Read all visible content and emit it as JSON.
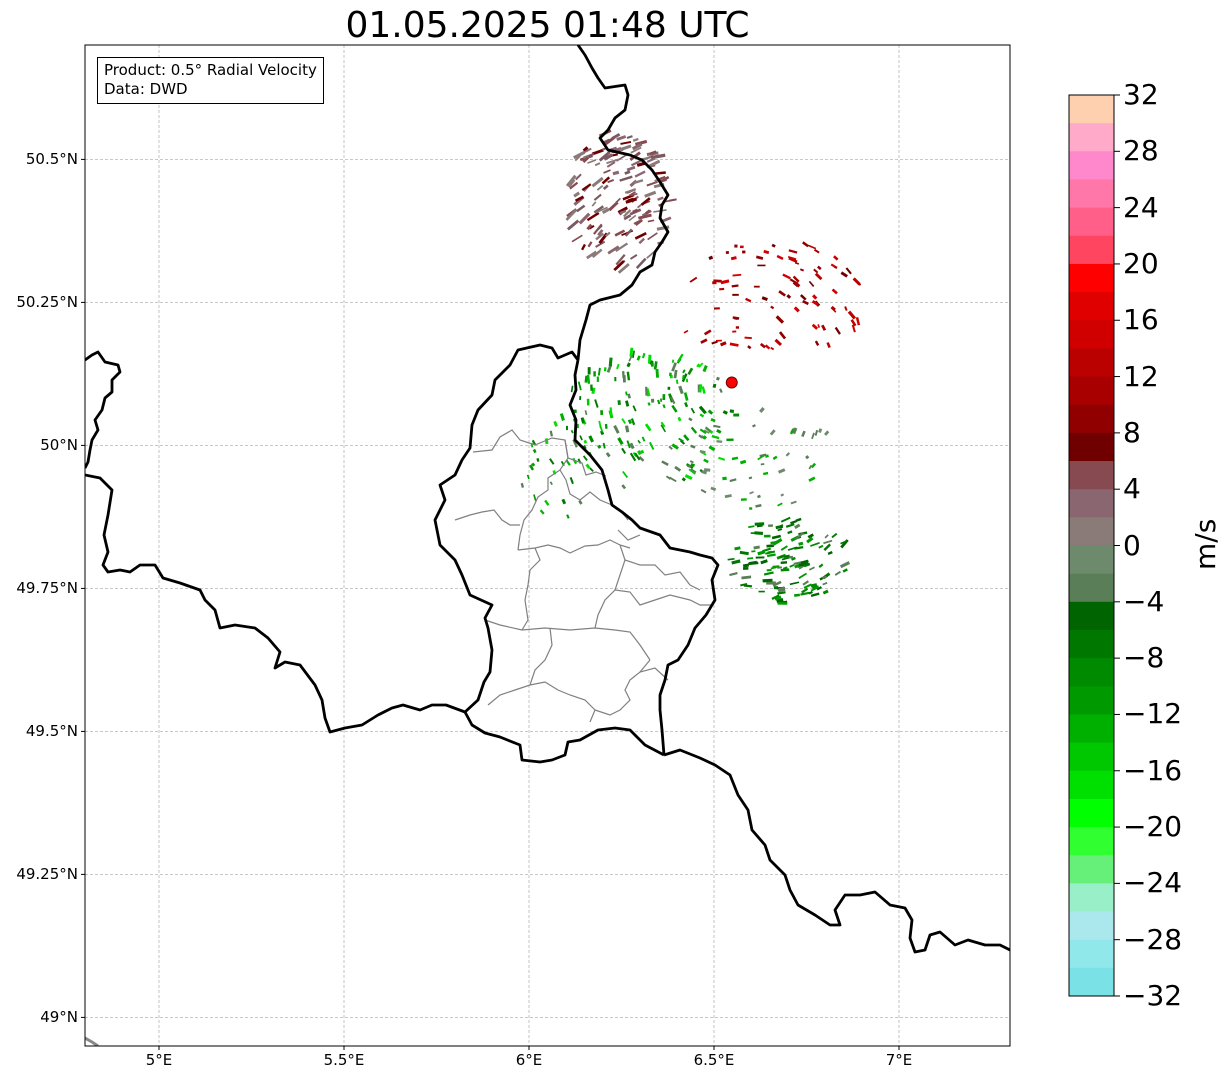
{
  "title": "01.05.2025 01:48 UTC",
  "info": {
    "product": "Product: 0.5° Radial Velocity",
    "source": "Data: DWD"
  },
  "axes": {
    "lon_min": 4.8,
    "lon_max": 7.3,
    "lat_min": 48.95,
    "lat_max": 50.7,
    "lon_ticks": [
      {
        "value": 5.0,
        "label": "5°E"
      },
      {
        "value": 5.5,
        "label": "5.5°E"
      },
      {
        "value": 6.0,
        "label": "6°E"
      },
      {
        "value": 6.5,
        "label": "6.5°E"
      },
      {
        "value": 7.0,
        "label": "7°E"
      }
    ],
    "lat_ticks": [
      {
        "value": 50.5,
        "label": "50.5°N"
      },
      {
        "value": 50.25,
        "label": "50.25°N"
      },
      {
        "value": 50.0,
        "label": "50°N"
      },
      {
        "value": 49.75,
        "label": "49.75°N"
      },
      {
        "value": 49.5,
        "label": "49.5°N"
      },
      {
        "value": 49.25,
        "label": "49.25°N"
      },
      {
        "value": 49.0,
        "label": "49°N"
      }
    ],
    "grid": true
  },
  "radar_site": {
    "lon": 6.548,
    "lat": 50.11,
    "color": "#ff0000"
  },
  "colorbar": {
    "unit": "m/s",
    "min": -32,
    "max": 32,
    "ticks": [
      {
        "value": 32,
        "label": "32"
      },
      {
        "value": 28,
        "label": "28"
      },
      {
        "value": 24,
        "label": "24"
      },
      {
        "value": 20,
        "label": "20"
      },
      {
        "value": 16,
        "label": "16"
      },
      {
        "value": 12,
        "label": "12"
      },
      {
        "value": 8,
        "label": "8"
      },
      {
        "value": 4,
        "label": "4"
      },
      {
        "value": 0,
        "label": "0"
      },
      {
        "value": -4,
        "label": "−4"
      },
      {
        "value": -8,
        "label": "−8"
      },
      {
        "value": -12,
        "label": "−12"
      },
      {
        "value": -16,
        "label": "−16"
      },
      {
        "value": -20,
        "label": "−20"
      },
      {
        "value": -24,
        "label": "−24"
      },
      {
        "value": -28,
        "label": "−28"
      },
      {
        "value": -32,
        "label": "−32"
      }
    ],
    "colors_top_to_bottom": [
      "#ffd0b0",
      "#ffaac8",
      "#ff88cc",
      "#ff77a8",
      "#ff5f88",
      "#ff4560",
      "#ff0000",
      "#e00000",
      "#d00000",
      "#bb0000",
      "#a80000",
      "#900000",
      "#700000",
      "#874a50",
      "#8a6670",
      "#8a7a78",
      "#6e8a6c",
      "#5a7e58",
      "#006400",
      "#007800",
      "#008a00",
      "#009a00",
      "#00b000",
      "#00c800",
      "#00e000",
      "#00ff00",
      "#30ff30",
      "#66f07a",
      "#99f0c8",
      "#aae8ee",
      "#90e8ea",
      "#7ae2e6"
    ]
  }
}
